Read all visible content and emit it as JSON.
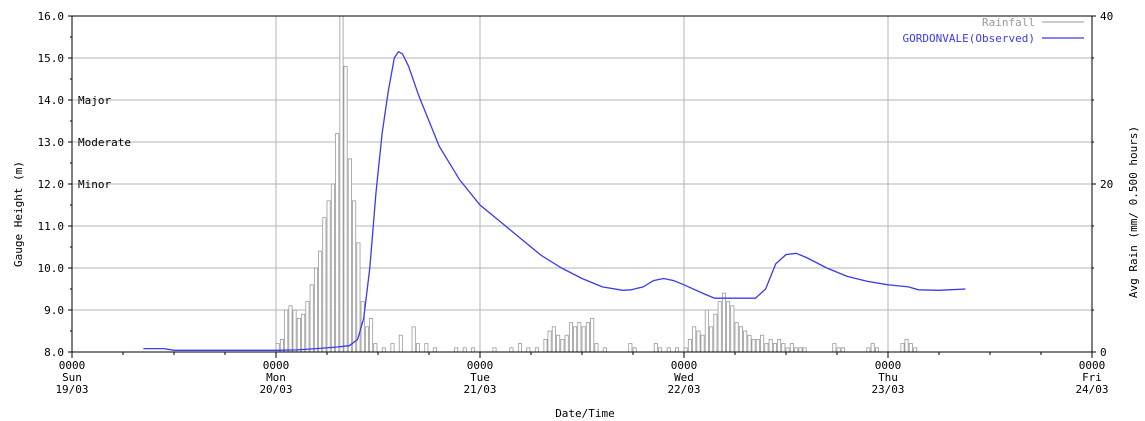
{
  "chart_data": {
    "type": "line",
    "xlabel": "Date/Time",
    "ylabel": "Gauge Height (m)",
    "y2label": "Avg Rain (mm/ 0.500 hours)",
    "ylim": [
      8.0,
      16.0
    ],
    "y2lim": [
      0,
      40
    ],
    "xlim": [
      "19/03 0000",
      "24/03 0000"
    ],
    "y_ticks": [
      "8.0",
      "9.0",
      "10.0",
      "11.0",
      "12.0",
      "13.0",
      "14.0",
      "15.0",
      "16.0"
    ],
    "y2_ticks": [
      "0",
      "20",
      "40"
    ],
    "x_ticks": [
      {
        "time": "0000",
        "day": "Sun",
        "date": "19/03"
      },
      {
        "time": "0000",
        "day": "Mon",
        "date": "20/03"
      },
      {
        "time": "0000",
        "day": "Tue",
        "date": "21/03"
      },
      {
        "time": "0000",
        "day": "Wed",
        "date": "22/03"
      },
      {
        "time": "0000",
        "day": "Thu",
        "date": "23/03"
      },
      {
        "time": "0000",
        "day": "Fri",
        "date": "24/03"
      }
    ],
    "grid": true,
    "legend_position": "top-right",
    "flood_levels": [
      {
        "label": "Major",
        "value": 14.0
      },
      {
        "label": "Moderate",
        "value": 13.0
      },
      {
        "label": "Minor",
        "value": 12.0
      }
    ],
    "series": [
      {
        "name": "GORDONVALE(Observed)",
        "type": "line",
        "color": "#3a3af0",
        "units": "m",
        "x_unit": "days from 19/03 0000",
        "points": [
          [
            0.35,
            8.08
          ],
          [
            0.45,
            8.08
          ],
          [
            0.5,
            8.04
          ],
          [
            0.7,
            8.04
          ],
          [
            1.0,
            8.04
          ],
          [
            1.1,
            8.05
          ],
          [
            1.2,
            8.08
          ],
          [
            1.3,
            8.12
          ],
          [
            1.36,
            8.15
          ],
          [
            1.4,
            8.3
          ],
          [
            1.43,
            8.8
          ],
          [
            1.46,
            10.0
          ],
          [
            1.49,
            11.8
          ],
          [
            1.52,
            13.2
          ],
          [
            1.55,
            14.2
          ],
          [
            1.58,
            15.0
          ],
          [
            1.6,
            15.15
          ],
          [
            1.62,
            15.1
          ],
          [
            1.65,
            14.8
          ],
          [
            1.7,
            14.1
          ],
          [
            1.75,
            13.5
          ],
          [
            1.8,
            12.9
          ],
          [
            1.9,
            12.1
          ],
          [
            2.0,
            11.5
          ],
          [
            2.1,
            11.1
          ],
          [
            2.2,
            10.7
          ],
          [
            2.3,
            10.3
          ],
          [
            2.4,
            10.0
          ],
          [
            2.5,
            9.75
          ],
          [
            2.6,
            9.55
          ],
          [
            2.7,
            9.47
          ],
          [
            2.74,
            9.48
          ],
          [
            2.8,
            9.55
          ],
          [
            2.85,
            9.7
          ],
          [
            2.9,
            9.75
          ],
          [
            2.95,
            9.7
          ],
          [
            3.0,
            9.6
          ],
          [
            3.1,
            9.38
          ],
          [
            3.15,
            9.28
          ],
          [
            3.35,
            9.28
          ],
          [
            3.4,
            9.5
          ],
          [
            3.45,
            10.1
          ],
          [
            3.5,
            10.32
          ],
          [
            3.55,
            10.35
          ],
          [
            3.6,
            10.25
          ],
          [
            3.7,
            10.0
          ],
          [
            3.8,
            9.8
          ],
          [
            3.9,
            9.68
          ],
          [
            4.0,
            9.6
          ],
          [
            4.1,
            9.55
          ],
          [
            4.15,
            9.48
          ],
          [
            4.25,
            9.47
          ],
          [
            4.3,
            9.48
          ],
          [
            4.38,
            9.5
          ]
        ]
      },
      {
        "name": "Rainfall",
        "type": "bar",
        "color": "#999999",
        "units": "mm/ 0.500 hours",
        "x_unit": "days from 19/03 0000",
        "bin_days": 0.0208,
        "points": [
          [
            1.0,
            1.0
          ],
          [
            1.021,
            1.5
          ],
          [
            1.042,
            5.0
          ],
          [
            1.063,
            5.5
          ],
          [
            1.083,
            5.0
          ],
          [
            1.104,
            4.0
          ],
          [
            1.125,
            4.5
          ],
          [
            1.146,
            6.0
          ],
          [
            1.167,
            8.0
          ],
          [
            1.188,
            10.0
          ],
          [
            1.208,
            12.0
          ],
          [
            1.229,
            16.0
          ],
          [
            1.25,
            18.0
          ],
          [
            1.271,
            20.0
          ],
          [
            1.292,
            26.0
          ],
          [
            1.313,
            40.0
          ],
          [
            1.333,
            34.0
          ],
          [
            1.354,
            23.0
          ],
          [
            1.375,
            18.0
          ],
          [
            1.396,
            13.0
          ],
          [
            1.417,
            6.0
          ],
          [
            1.438,
            3.0
          ],
          [
            1.458,
            4.0
          ],
          [
            1.479,
            1.0
          ],
          [
            1.521,
            0.5
          ],
          [
            1.563,
            1.0
          ],
          [
            1.604,
            2.0
          ],
          [
            1.667,
            3.0
          ],
          [
            1.688,
            1.0
          ],
          [
            1.729,
            1.0
          ],
          [
            1.771,
            0.5
          ],
          [
            1.875,
            0.5
          ],
          [
            1.917,
            0.5
          ],
          [
            1.958,
            0.5
          ],
          [
            2.063,
            0.5
          ],
          [
            2.146,
            0.5
          ],
          [
            2.188,
            1.0
          ],
          [
            2.229,
            0.5
          ],
          [
            2.271,
            0.5
          ],
          [
            2.313,
            1.5
          ],
          [
            2.333,
            2.5
          ],
          [
            2.354,
            3.0
          ],
          [
            2.375,
            2.0
          ],
          [
            2.396,
            1.5
          ],
          [
            2.417,
            2.0
          ],
          [
            2.438,
            3.5
          ],
          [
            2.458,
            3.0
          ],
          [
            2.479,
            3.5
          ],
          [
            2.5,
            3.0
          ],
          [
            2.521,
            3.5
          ],
          [
            2.542,
            4.0
          ],
          [
            2.563,
            1.0
          ],
          [
            2.604,
            0.5
          ],
          [
            2.729,
            1.0
          ],
          [
            2.75,
            0.5
          ],
          [
            2.854,
            1.0
          ],
          [
            2.875,
            0.5
          ],
          [
            2.917,
            0.5
          ],
          [
            2.958,
            0.5
          ],
          [
            3.0,
            0.5
          ],
          [
            3.021,
            1.5
          ],
          [
            3.042,
            3.0
          ],
          [
            3.063,
            2.5
          ],
          [
            3.083,
            2.0
          ],
          [
            3.104,
            5.0
          ],
          [
            3.125,
            3.0
          ],
          [
            3.146,
            4.5
          ],
          [
            3.167,
            6.0
          ],
          [
            3.188,
            7.0
          ],
          [
            3.208,
            6.0
          ],
          [
            3.229,
            5.5
          ],
          [
            3.25,
            3.5
          ],
          [
            3.271,
            3.0
          ],
          [
            3.292,
            2.5
          ],
          [
            3.313,
            2.0
          ],
          [
            3.333,
            1.5
          ],
          [
            3.354,
            1.5
          ],
          [
            3.375,
            2.0
          ],
          [
            3.396,
            1.0
          ],
          [
            3.417,
            1.5
          ],
          [
            3.438,
            1.0
          ],
          [
            3.458,
            1.5
          ],
          [
            3.479,
            1.0
          ],
          [
            3.5,
            0.5
          ],
          [
            3.521,
            1.0
          ],
          [
            3.542,
            0.5
          ],
          [
            3.563,
            0.5
          ],
          [
            3.583,
            0.5
          ],
          [
            3.729,
            1.0
          ],
          [
            3.75,
            0.5
          ],
          [
            3.771,
            0.5
          ],
          [
            3.896,
            0.5
          ],
          [
            3.917,
            1.0
          ],
          [
            3.938,
            0.5
          ],
          [
            4.063,
            1.0
          ],
          [
            4.083,
            1.5
          ],
          [
            4.104,
            1.0
          ],
          [
            4.125,
            0.5
          ]
        ]
      }
    ]
  }
}
